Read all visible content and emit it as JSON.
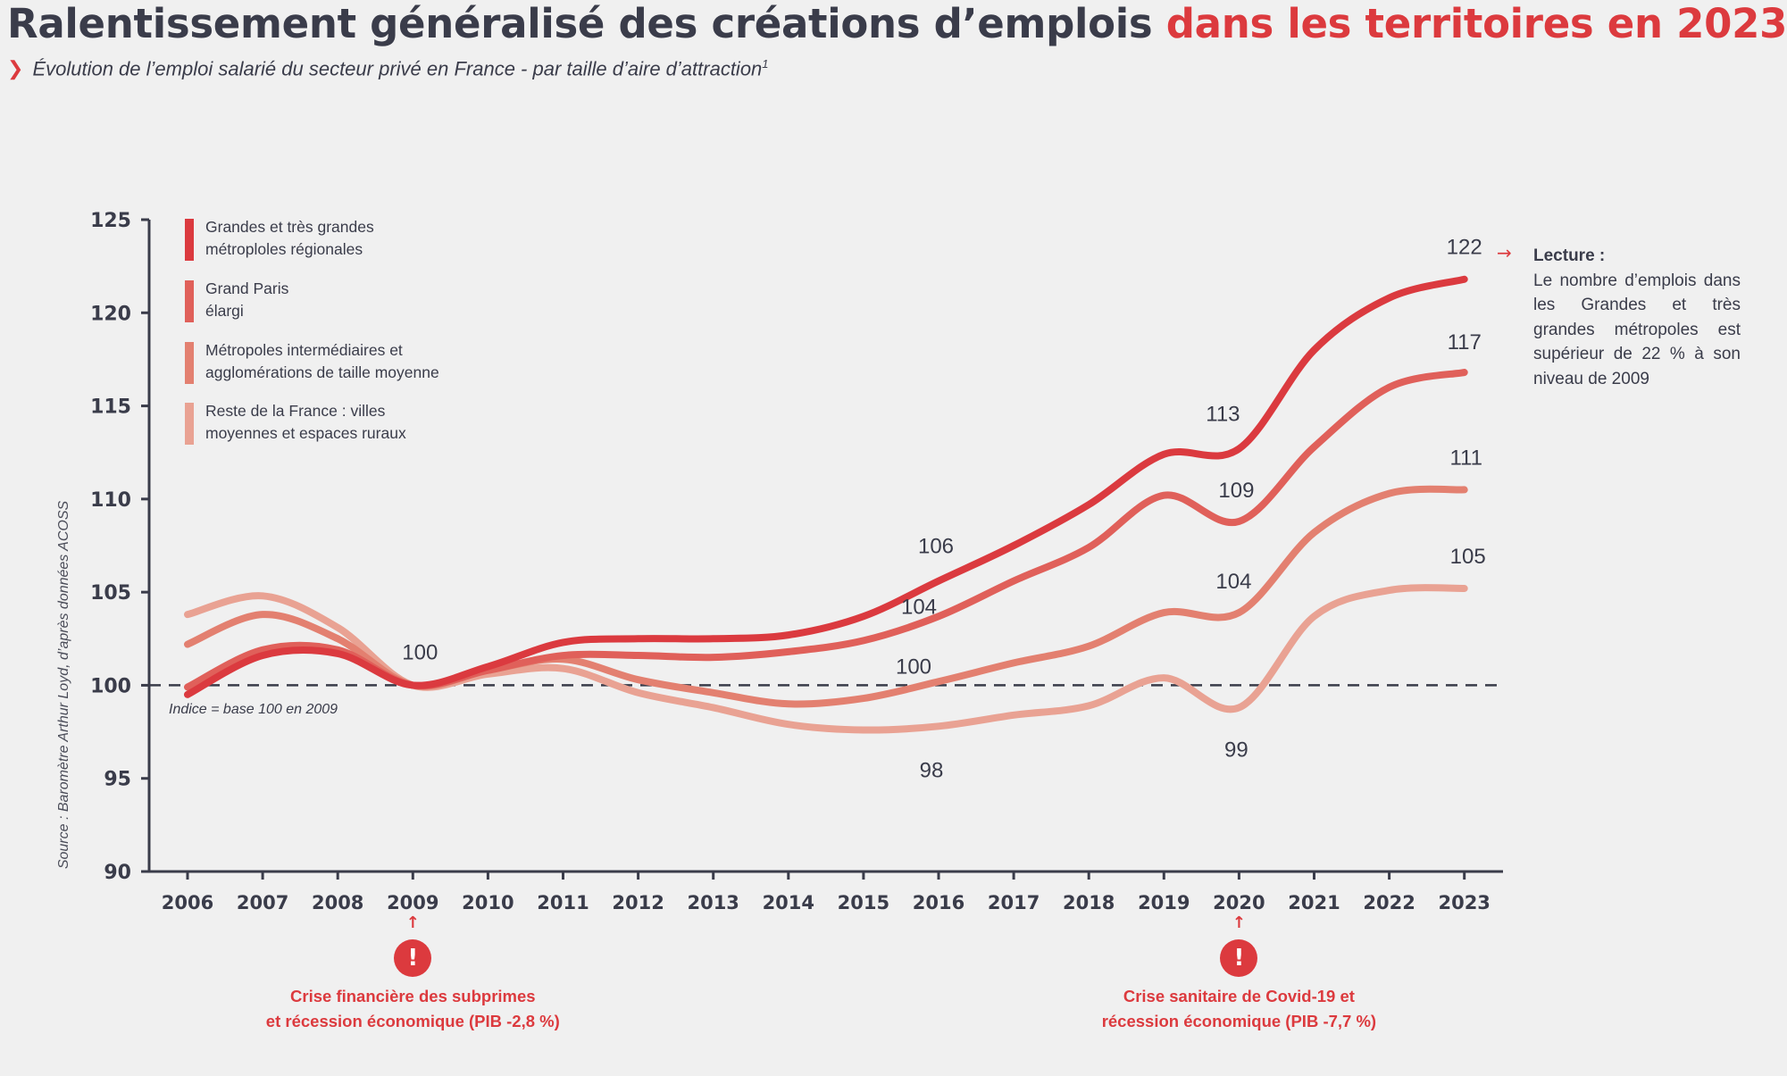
{
  "header": {
    "title_main": "Ralentissement généralisé des créations d’emplois ",
    "title_accent": "dans les territoires en 2023",
    "subtitle": "Évolution de l’emploi salarié du secteur privé en France - par taille d’aire d’attraction",
    "subtitle_sup": "1",
    "subtitle_icon": "chevron-right-icon"
  },
  "lecture": {
    "heading": "Lecture :",
    "text": "Le nombre d’emplois dans les Grandes et très grandes métropoles est supérieur de 22 % à son niveau de 2009"
  },
  "source": "Source : Baromètre Arthur Loyd, d’après données ACOSS",
  "events": [
    {
      "year": 2009,
      "text": "Crise financière des subprimes\net récession économique (PIB -2,8 %)"
    },
    {
      "year": 2020,
      "text": "Crise sanitaire de Covid-19 et\nrécession économique (PIB -7,7 %)"
    }
  ],
  "chart_data": {
    "type": "line",
    "title": "Évolution de l’emploi salarié du secteur privé en France - par taille d’aire d’attraction",
    "xlabel": "",
    "ylabel": "",
    "ylim": [
      90,
      125
    ],
    "yticks": [
      90,
      95,
      100,
      105,
      110,
      115,
      120,
      125
    ],
    "x": [
      2006,
      2007,
      2008,
      2009,
      2010,
      2011,
      2012,
      2013,
      2014,
      2015,
      2016,
      2017,
      2018,
      2019,
      2020,
      2021,
      2022,
      2023
    ],
    "baseline": {
      "value": 100,
      "label": "Indice = base 100 en 2009"
    },
    "legend_position": "top-left",
    "series": [
      {
        "name": "Grandes et très grandes\nmétroploles régionales",
        "color": "#db3a3f",
        "values": [
          99.5,
          101.6,
          101.7,
          100,
          101.0,
          102.3,
          102.5,
          102.5,
          102.7,
          103.7,
          105.6,
          107.5,
          109.7,
          112.4,
          112.7,
          118.0,
          120.8,
          121.8
        ]
      },
      {
        "name": "Grand Paris\nélargi",
        "color": "#e0605a",
        "values": [
          99.9,
          101.9,
          101.9,
          100,
          100.8,
          101.6,
          101.6,
          101.5,
          101.8,
          102.4,
          103.7,
          105.6,
          107.4,
          110.2,
          108.8,
          112.8,
          116.0,
          116.8
        ]
      },
      {
        "name": "Métropoles intermédiaires et\nagglomérations de taille moyenne",
        "color": "#e38070",
        "values": [
          102.2,
          103.8,
          102.5,
          100,
          100.8,
          101.4,
          100.3,
          99.6,
          99.0,
          99.3,
          100.2,
          101.2,
          102.1,
          103.9,
          103.9,
          108.2,
          110.3,
          110.5
        ]
      },
      {
        "name": "Reste de la France : villes\nmoyennes et espaces ruraux",
        "color": "#e9a293",
        "values": [
          103.8,
          104.8,
          103.1,
          100,
          100.6,
          100.9,
          99.6,
          98.8,
          97.9,
          97.6,
          97.8,
          98.4,
          98.9,
          100.4,
          98.8,
          103.7,
          105.1,
          105.2
        ]
      }
    ],
    "annotations": [
      {
        "text": "100",
        "year": 2009,
        "value": 100,
        "dx": 8,
        "dy": -38
      },
      {
        "text": "106",
        "year": 2016,
        "value": 105.6,
        "dx": -3,
        "dy": -40
      },
      {
        "text": "104",
        "year": 2016,
        "value": 103.7,
        "dx": -22,
        "dy": -12
      },
      {
        "text": "100",
        "year": 2016,
        "value": 100.2,
        "dx": -28,
        "dy": -18
      },
      {
        "text": "98",
        "year": 2016,
        "value": 97.8,
        "dx": -8,
        "dy": 48
      },
      {
        "text": "113",
        "year": 2020,
        "value": 112.7,
        "dx": -18,
        "dy": -40
      },
      {
        "text": "109",
        "year": 2020,
        "value": 108.8,
        "dx": -3,
        "dy": -36
      },
      {
        "text": "104",
        "year": 2020,
        "value": 103.9,
        "dx": -6,
        "dy": -36
      },
      {
        "text": "99",
        "year": 2020,
        "value": 98.8,
        "dx": -3,
        "dy": 46
      },
      {
        "text": "122",
        "year": 2023,
        "value": 121.8,
        "dx": 0,
        "dy": -37
      },
      {
        "text": "117",
        "year": 2023,
        "value": 116.8,
        "dx": 0,
        "dy": -35
      },
      {
        "text": "111",
        "year": 2023,
        "value": 110.5,
        "dx": 2,
        "dy": -37
      },
      {
        "text": "105",
        "year": 2023,
        "value": 105.2,
        "dx": 4,
        "dy": -37
      }
    ]
  }
}
